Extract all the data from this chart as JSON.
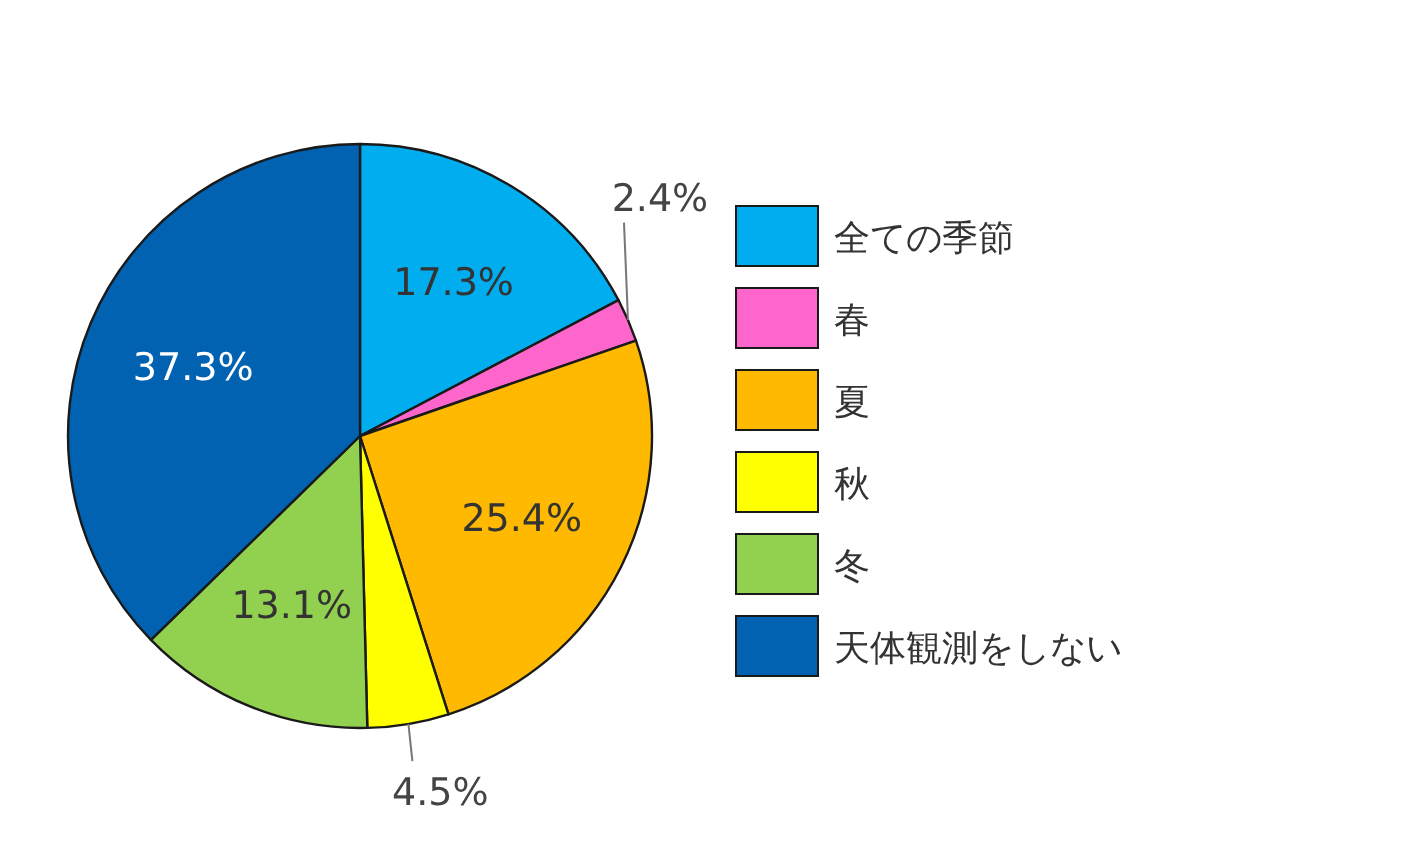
{
  "chart_data": {
    "type": "pie",
    "categories": [
      "全ての季節",
      "春",
      "夏",
      "秋",
      "冬",
      "天体観測をしない"
    ],
    "values": [
      17.3,
      2.4,
      25.4,
      4.5,
      13.1,
      37.3
    ],
    "colors": [
      "#00aeef",
      "#ff66cc",
      "#ffb900",
      "#ffff00",
      "#92d050",
      "#0062b1"
    ],
    "value_labels": [
      "17.3%",
      "2.4%",
      "25.4%",
      "4.5%",
      "13.1%",
      "37.3%"
    ],
    "legend": "right"
  }
}
